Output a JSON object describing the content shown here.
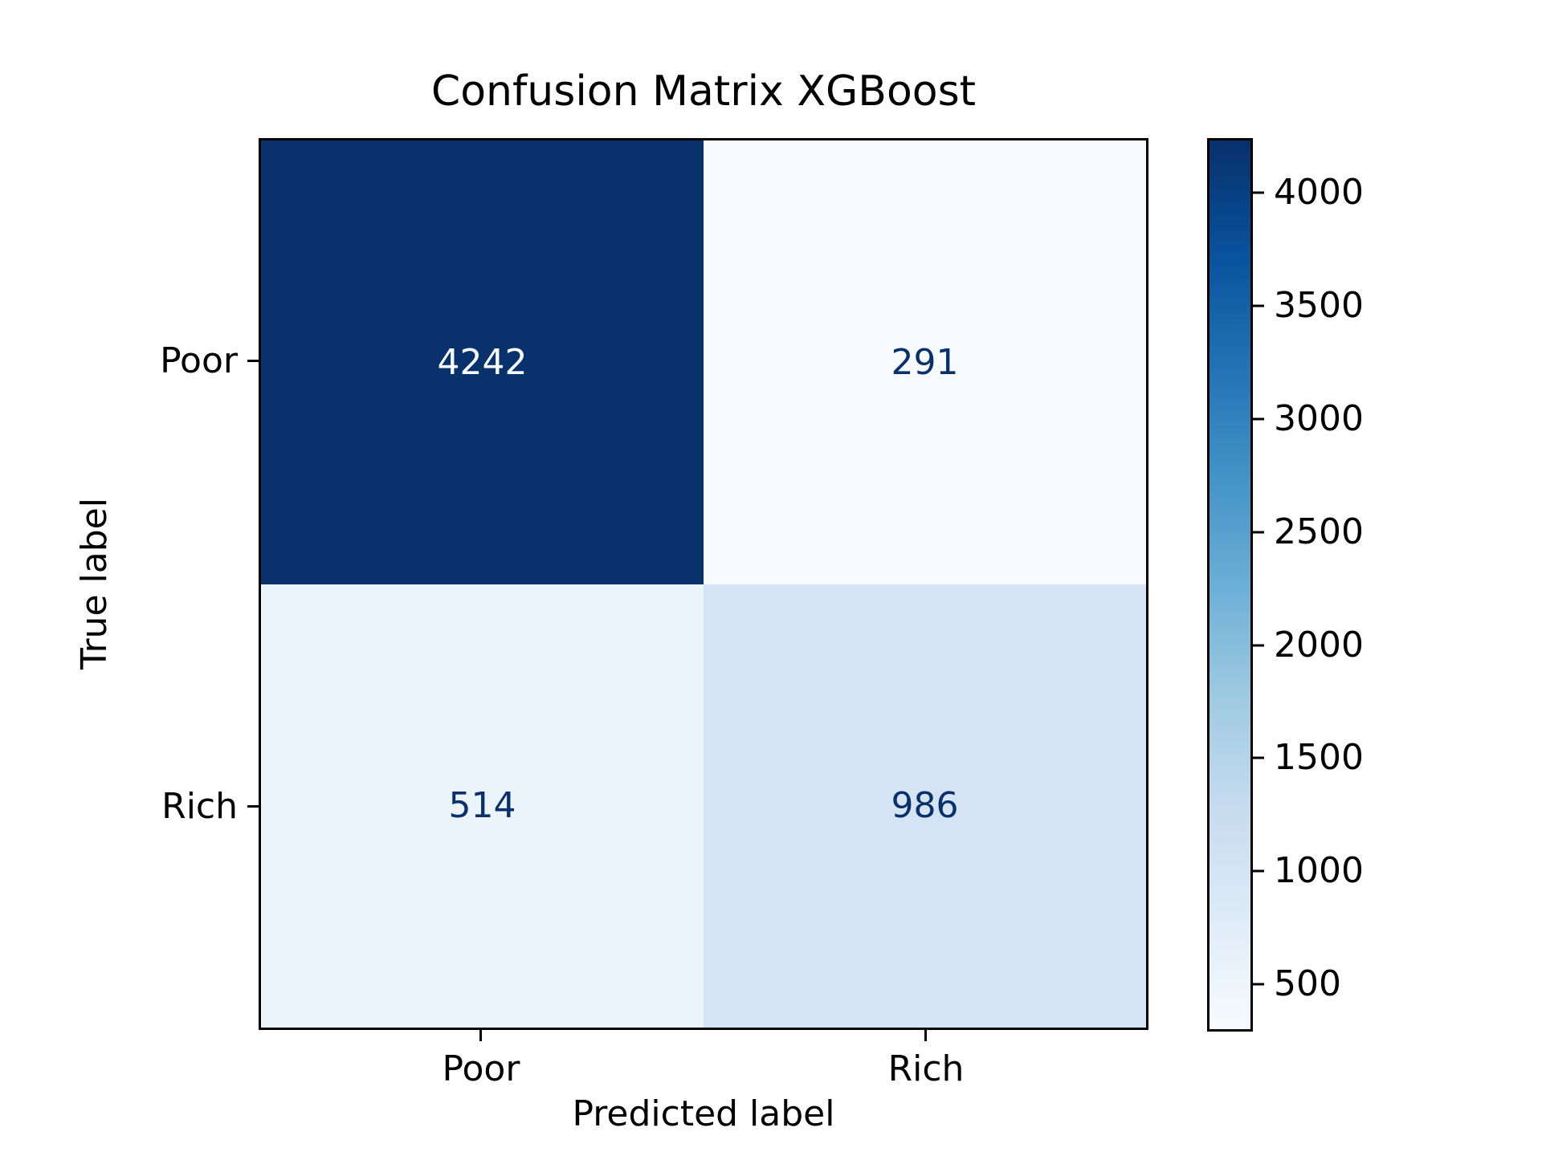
{
  "figure": {
    "title": "Confusion Matrix XGBoost",
    "background_color": "#ffffff"
  },
  "chart_data": {
    "type": "heatmap",
    "title": "Confusion Matrix XGBoost",
    "xlabel": "Predicted label",
    "ylabel": "True label",
    "x_categories": [
      "Poor",
      "Rich"
    ],
    "y_categories": [
      "Poor",
      "Rich"
    ],
    "matrix": [
      [
        4242,
        291
      ],
      [
        514,
        986
      ]
    ],
    "vmin": 291,
    "vmax": 4242,
    "colormap": "Blues",
    "colorbar_ticks": [
      4000,
      3500,
      3000,
      2500,
      2000,
      1500,
      1000,
      500
    ],
    "grid": false,
    "legend_position": "right-colorbar"
  },
  "axes": {
    "x_label": "Predicted label",
    "y_label": "True label",
    "x_ticks": [
      "Poor",
      "Rich"
    ],
    "y_ticks": [
      "Poor",
      "Rich"
    ]
  },
  "cells": [
    {
      "row": "Poor",
      "col": "Poor",
      "value": "4242",
      "bg": "#09316c",
      "fg": "#f7fbff"
    },
    {
      "row": "Poor",
      "col": "Rich",
      "value": "291",
      "bg": "#f7fbff",
      "fg": "#08306b"
    },
    {
      "row": "Rich",
      "col": "Poor",
      "value": "514",
      "bg": "#ecf4fb",
      "fg": "#08306b"
    },
    {
      "row": "Rich",
      "col": "Rich",
      "value": "986",
      "bg": "#d4e4f4",
      "fg": "#08306b"
    }
  ],
  "colorbar": {
    "colormap_name": "Blues",
    "top_color": "#08306b",
    "bottom_color": "#f7fbff",
    "tick_labels": [
      "4000",
      "3500",
      "3000",
      "2500",
      "2000",
      "1500",
      "1000",
      "500"
    ]
  }
}
